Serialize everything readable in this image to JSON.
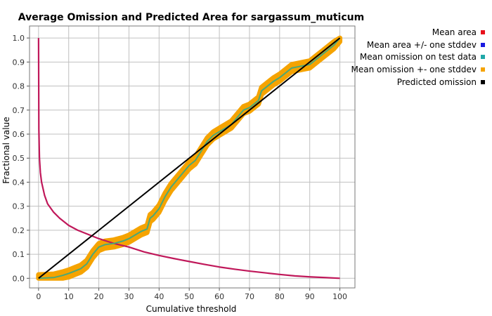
{
  "chart_data": {
    "type": "line",
    "title": "Average Omission and Predicted Area for sargassum_muticum",
    "xlabel": "Cumulative threshold",
    "ylabel": "Fractional value",
    "xlim": [
      -3,
      105
    ],
    "ylim": [
      -0.04,
      1.05
    ],
    "xticks": [
      0,
      10,
      20,
      30,
      40,
      50,
      60,
      70,
      80,
      90,
      100
    ],
    "yticks": [
      0.0,
      0.1,
      0.2,
      0.3,
      0.4,
      0.5,
      0.6,
      0.7,
      0.8,
      0.9,
      1.0
    ],
    "grid": true,
    "legend_position": "right",
    "legend": [
      {
        "label": "Mean area",
        "color": "#e8101b"
      },
      {
        "label": "Mean area +/- one stddev",
        "color": "#1a1ae0"
      },
      {
        "label": "Mean omission on test data",
        "color": "#20a8a8"
      },
      {
        "label": "Mean omission +- one stddev",
        "color": "#f5a300"
      },
      {
        "label": "Predicted omission",
        "color": "#000000"
      }
    ],
    "series": [
      {
        "name": "Mean area",
        "color": "#c0185a",
        "x": [
          0,
          0.1,
          0.3,
          0.6,
          1,
          2,
          3,
          5,
          7,
          10,
          13,
          16,
          20,
          25,
          30,
          35,
          40,
          45,
          50,
          55,
          60,
          65,
          70,
          75,
          80,
          85,
          90,
          95,
          100
        ],
        "y": [
          1.0,
          0.62,
          0.5,
          0.44,
          0.4,
          0.345,
          0.31,
          0.275,
          0.25,
          0.22,
          0.2,
          0.185,
          0.165,
          0.145,
          0.13,
          0.11,
          0.095,
          0.082,
          0.07,
          0.058,
          0.047,
          0.038,
          0.03,
          0.023,
          0.016,
          0.01,
          0.006,
          0.003,
          0.0
        ]
      },
      {
        "name": "Mean omission on test data",
        "color": "#4aa878",
        "band_color": "#f5a300",
        "band_stddev": 0.015,
        "x": [
          0,
          5,
          8,
          10,
          12,
          14,
          16,
          18,
          20,
          22,
          25,
          28,
          30,
          32,
          34,
          36,
          37,
          38,
          40,
          42,
          44,
          46,
          48,
          50,
          52,
          54,
          56,
          58,
          60,
          62,
          64,
          66,
          68,
          70,
          72,
          73,
          74,
          76,
          78,
          80,
          82,
          84,
          86,
          88,
          90,
          92,
          94,
          96,
          98,
          100
        ],
        "y": [
          0.0,
          0.003,
          0.012,
          0.02,
          0.03,
          0.04,
          0.06,
          0.1,
          0.13,
          0.14,
          0.145,
          0.155,
          0.165,
          0.18,
          0.195,
          0.205,
          0.25,
          0.26,
          0.29,
          0.34,
          0.38,
          0.41,
          0.44,
          0.47,
          0.49,
          0.53,
          0.57,
          0.595,
          0.61,
          0.625,
          0.64,
          0.67,
          0.7,
          0.71,
          0.73,
          0.74,
          0.78,
          0.8,
          0.82,
          0.835,
          0.855,
          0.875,
          0.88,
          0.885,
          0.89,
          0.91,
          0.93,
          0.95,
          0.97,
          1.0
        ]
      },
      {
        "name": "Predicted omission",
        "color": "#000000",
        "x": [
          0,
          100
        ],
        "y": [
          0,
          1
        ]
      }
    ]
  }
}
